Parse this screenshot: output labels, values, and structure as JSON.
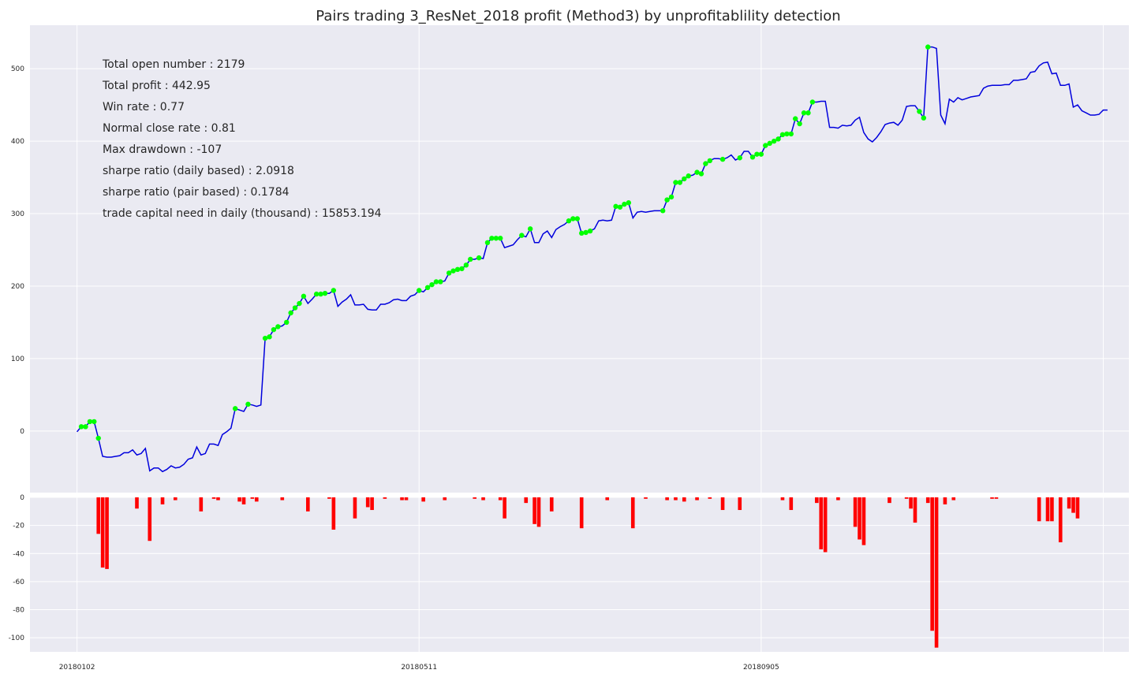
{
  "chart_data": {
    "type": "line",
    "title": "Pairs trading 3_ResNet_2018 profit (Method3) by unprofitablility detection",
    "colors": {
      "profit_line": "#0000dd",
      "marker": "#00ff00",
      "bars": "#ff0000",
      "background": "#eaeaf2",
      "grid": "#ffffff"
    },
    "stats": [
      "Total open number : 2179",
      "Total profit : 442.95",
      "Win rate : 0.77",
      "Normal close rate : 0.81",
      "Max drawdown : -107",
      "sharpe ratio (daily based) : 2.0918",
      "sharpe ratio (pair based) : 0.1784",
      "trade capital need in daily (thousand) : 15853.194"
    ],
    "x_tick_labels": [
      "20180102",
      "20180511",
      "20180905"
    ],
    "x_tick_index": [
      0,
      80,
      160
    ],
    "x_range": [
      -11,
      246
    ],
    "top_panel": {
      "ylim": [
        -85,
        560
      ],
      "yticks": [
        0,
        100,
        200,
        300,
        400,
        500
      ],
      "profit": [
        -1,
        6,
        6,
        13,
        13,
        -10,
        -35,
        -36,
        -36,
        -35,
        -34,
        -30,
        -30,
        -26,
        -33,
        -31,
        -24,
        -55,
        -51,
        -51,
        -56,
        -53,
        -48,
        -51,
        -50,
        -46,
        -39,
        -37,
        -22,
        -33,
        -31,
        -18,
        -18,
        -20,
        -5,
        -1,
        4,
        31,
        29,
        27,
        37,
        36,
        34,
        36,
        128,
        130,
        140,
        144,
        145,
        150,
        163,
        170,
        176,
        186,
        176,
        182,
        189,
        189,
        190,
        190,
        194,
        172,
        178,
        182,
        188,
        174,
        174,
        175,
        168,
        167,
        167,
        175,
        175,
        177,
        181,
        182,
        180,
        180,
        186,
        188,
        194,
        192,
        198,
        202,
        206,
        206,
        207,
        218,
        221,
        223,
        224,
        229,
        237,
        237,
        239,
        238,
        260,
        266,
        266,
        266,
        253,
        255,
        257,
        264,
        270,
        268,
        279,
        260,
        260,
        272,
        276,
        267,
        278,
        282,
        285,
        290,
        293,
        293,
        273,
        274,
        276,
        279,
        290,
        291,
        290,
        291,
        310,
        309,
        313,
        315,
        294,
        302,
        303,
        302,
        303,
        304,
        304,
        304,
        319,
        323,
        343,
        343,
        348,
        352,
        353,
        357,
        355,
        369,
        373,
        376,
        376,
        375,
        377,
        381,
        374,
        377,
        386,
        386,
        378,
        382,
        382,
        394,
        397,
        400,
        403,
        409,
        410,
        410,
        431,
        424,
        439,
        439,
        454,
        454,
        455,
        455,
        419,
        419,
        418,
        422,
        421,
        422,
        429,
        433,
        412,
        403,
        399,
        405,
        413,
        423,
        425,
        426,
        422,
        429,
        448,
        449,
        449,
        441,
        432,
        530,
        530,
        528,
        436,
        424,
        458,
        454,
        460,
        457,
        459,
        461,
        462,
        463,
        473,
        476,
        477,
        477,
        477,
        478,
        478,
        484,
        484,
        485,
        486,
        495,
        496,
        504,
        508,
        509,
        493,
        494,
        477,
        477,
        479,
        447,
        450,
        442,
        439,
        436,
        436,
        437,
        443,
        443
      ],
      "markers_index": [
        1,
        2,
        3,
        4,
        5,
        37,
        40,
        44,
        45,
        46,
        47,
        49,
        50,
        51,
        52,
        53,
        56,
        57,
        58,
        60,
        80,
        82,
        83,
        84,
        85,
        87,
        88,
        89,
        90,
        91,
        92,
        94,
        96,
        97,
        98,
        99,
        104,
        106,
        115,
        116,
        117,
        118,
        119,
        120,
        126,
        127,
        128,
        129,
        137,
        138,
        139,
        140,
        141,
        142,
        143,
        145,
        146,
        147,
        148,
        151,
        155,
        158,
        159,
        160,
        161,
        162,
        163,
        164,
        165,
        166,
        167,
        168,
        169,
        170,
        171,
        172,
        197,
        198,
        199
      ]
    },
    "bottom_panel": {
      "ylim": [
        -110,
        0
      ],
      "yticks": [
        0,
        -20,
        -40,
        -60,
        -80,
        -100
      ],
      "drawdown_bars": [
        [
          5,
          -26
        ],
        [
          6,
          -50
        ],
        [
          7,
          -51
        ],
        [
          14,
          -8
        ],
        [
          17,
          -31
        ],
        [
          20,
          -5
        ],
        [
          23,
          -2
        ],
        [
          29,
          -10
        ],
        [
          32,
          -1
        ],
        [
          33,
          -2
        ],
        [
          38,
          -3
        ],
        [
          39,
          -5
        ],
        [
          41,
          -1
        ],
        [
          42,
          -3
        ],
        [
          48,
          -2
        ],
        [
          54,
          -10
        ],
        [
          59,
          -1
        ],
        [
          60,
          -23
        ],
        [
          65,
          -15
        ],
        [
          68,
          -7
        ],
        [
          69,
          -9
        ],
        [
          72,
          -1
        ],
        [
          76,
          -2
        ],
        [
          77,
          -2
        ],
        [
          81,
          -3
        ],
        [
          86,
          -2
        ],
        [
          93,
          -1
        ],
        [
          95,
          -2
        ],
        [
          99,
          -2
        ],
        [
          100,
          -15
        ],
        [
          105,
          -4
        ],
        [
          107,
          -19
        ],
        [
          108,
          -21
        ],
        [
          111,
          -10
        ],
        [
          118,
          -22
        ],
        [
          124,
          -2
        ],
        [
          130,
          -22
        ],
        [
          133,
          -1
        ],
        [
          138,
          -2
        ],
        [
          140,
          -2
        ],
        [
          142,
          -3
        ],
        [
          145,
          -2
        ],
        [
          148,
          -1
        ],
        [
          151,
          -9
        ],
        [
          155,
          -9
        ],
        [
          165,
          -2
        ],
        [
          167,
          -9
        ],
        [
          173,
          -4
        ],
        [
          174,
          -37
        ],
        [
          175,
          -39
        ],
        [
          178,
          -2
        ],
        [
          182,
          -21
        ],
        [
          183,
          -30
        ],
        [
          184,
          -34
        ],
        [
          190,
          -4
        ],
        [
          194,
          -1
        ],
        [
          195,
          -8
        ],
        [
          196,
          -18
        ],
        [
          199,
          -4
        ],
        [
          200,
          -95
        ],
        [
          201,
          -107
        ],
        [
          203,
          -5
        ],
        [
          205,
          -2
        ],
        [
          214,
          -1
        ],
        [
          215,
          -1
        ],
        [
          225,
          -17
        ],
        [
          227,
          -17
        ],
        [
          228,
          -17
        ],
        [
          230,
          -32
        ],
        [
          232,
          -8
        ],
        [
          233,
          -11
        ],
        [
          234,
          -15
        ]
      ]
    }
  }
}
